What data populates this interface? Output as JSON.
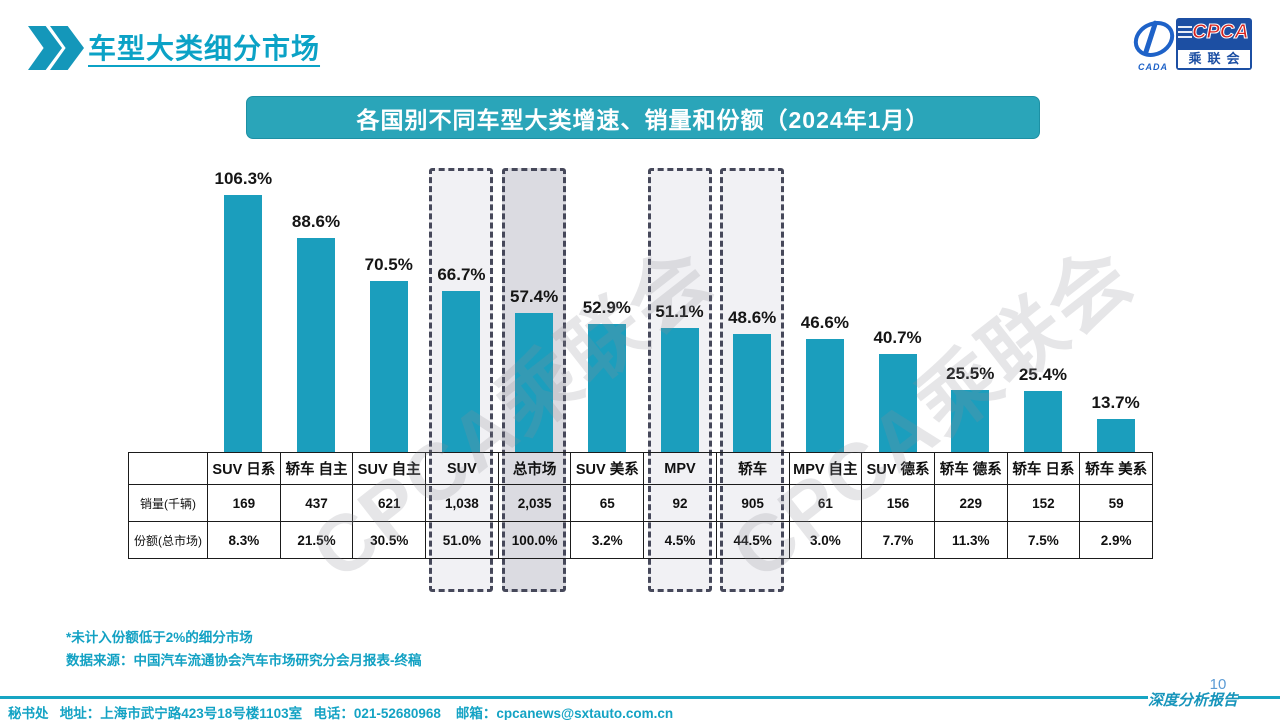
{
  "header": {
    "title": "车型大类细分市场",
    "logo": {
      "cpca": "CPCA",
      "cn": "乘联会",
      "cada": "CADA"
    }
  },
  "banner": {
    "title": "各国别不同车型大类增速、销量和份额（2024年1月）"
  },
  "chart_data": {
    "type": "bar",
    "title": "各国别不同车型大类增速、销量和份额（2024年1月）",
    "categories": [
      "SUV 日系",
      "轿车 自主",
      "SUV 自主",
      "SUV",
      "总市场",
      "SUV 美系",
      "MPV",
      "轿车",
      "MPV 自主",
      "SUV 德系",
      "轿车 德系",
      "轿车 日系",
      "轿车 美系"
    ],
    "series": [
      {
        "name": "增速(%)",
        "values": [
          106.3,
          88.6,
          70.5,
          66.7,
          57.4,
          52.9,
          51.1,
          48.6,
          46.6,
          40.7,
          25.5,
          25.4,
          13.7
        ]
      }
    ],
    "value_suffix": "%",
    "ylim": [
      0,
      120
    ],
    "grid": false,
    "legend": false,
    "bar_color": "#1b9ebd",
    "table": {
      "row_labels": {
        "sales": "销量(千辆)",
        "share": "份额(总市场)"
      },
      "sales": [
        "169",
        "437",
        "621",
        "1,038",
        "2,035",
        "65",
        "92",
        "905",
        "61",
        "156",
        "229",
        "152",
        "59"
      ],
      "share": [
        "8.3%",
        "21.5%",
        "30.5%",
        "51.0%",
        "100.0%",
        "3.2%",
        "4.5%",
        "44.5%",
        "3.0%",
        "7.7%",
        "11.3%",
        "7.5%",
        "2.9%"
      ]
    },
    "highlights": [
      {
        "index": 3,
        "fill": "#f1f1f4"
      },
      {
        "index": 4,
        "fill": "#dbdbe1"
      },
      {
        "index": 6,
        "fill": "#f1f1f4"
      },
      {
        "index": 7,
        "fill": "#f1f1f4"
      }
    ]
  },
  "watermark": {
    "text": "CPCA乘联会"
  },
  "notes": [
    "*未计入份额低于2%的细分市场",
    "数据来源：中国汽车流通协会汽车市场研究分会月报表-终稿"
  ],
  "footer": {
    "secretariat": "秘书处   地址：上海市武宁路423号18号楼1103室   电话：021-52680968    邮箱：cpcanews@sxtauto.com.cn",
    "report_label": "深度分析报告",
    "page_number": "10"
  }
}
